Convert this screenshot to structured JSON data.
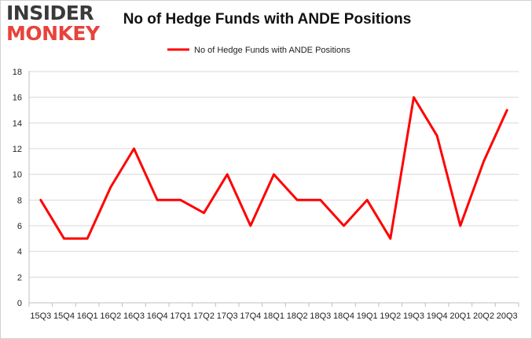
{
  "logo": {
    "line1": "INSIDER",
    "line2": "MONKEY"
  },
  "colors": {
    "series": "#ff0000",
    "grid": "#d9d9d9",
    "logo_dark": "#3a3a3a",
    "logo_red": "#e8423b"
  },
  "chart_data": {
    "type": "line",
    "title": "No of Hedge Funds with ANDE Positions",
    "xlabel": "",
    "ylabel": "",
    "ylim": [
      0,
      18
    ],
    "yticks": [
      0,
      2,
      4,
      6,
      8,
      10,
      12,
      14,
      16,
      18
    ],
    "grid": true,
    "legend": "top-center",
    "categories": [
      "15Q3",
      "15Q4",
      "16Q1",
      "16Q2",
      "16Q3",
      "16Q4",
      "17Q1",
      "17Q2",
      "17Q3",
      "17Q4",
      "18Q1",
      "18Q2",
      "18Q3",
      "18Q4",
      "19Q1",
      "19Q2",
      "19Q3",
      "19Q4",
      "20Q1",
      "20Q2",
      "20Q3"
    ],
    "series": [
      {
        "name": "No of Hedge Funds with ANDE Positions",
        "values": [
          8,
          5,
          5,
          9,
          12,
          8,
          8,
          7,
          10,
          6,
          10,
          8,
          8,
          6,
          8,
          5,
          16,
          13,
          6,
          11,
          15
        ]
      }
    ]
  }
}
